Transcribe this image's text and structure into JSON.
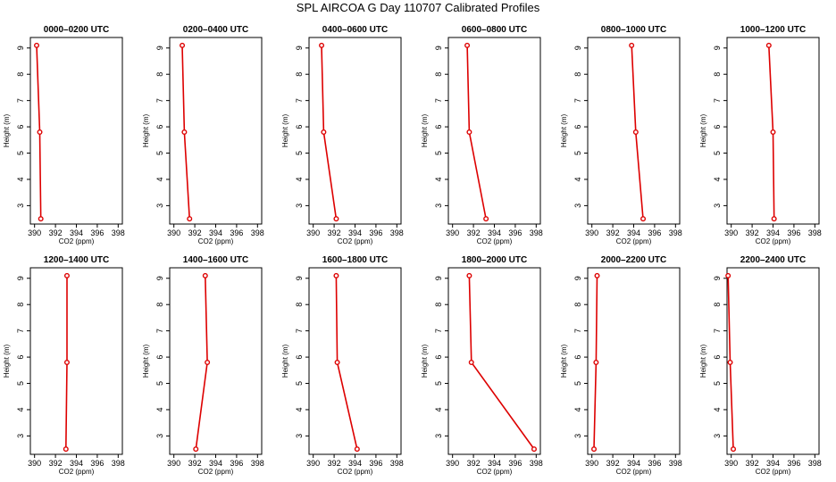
{
  "title": "SPL AIRCOA G  Day 110707  Calibrated Profiles",
  "colors": {
    "series": "#dd0000",
    "axis": "#000000",
    "background": "#ffffff"
  },
  "chart_data": [
    {
      "type": "line",
      "title": "0000–0200 UTC",
      "xlabel": "CO2 (ppm)",
      "ylabel": "Height (m)",
      "xlim": [
        389.6,
        398.4
      ],
      "ylim": [
        2.3,
        9.4
      ],
      "xticks": [
        390,
        392,
        394,
        396,
        398
      ],
      "yticks": [
        3,
        4,
        5,
        6,
        7,
        8,
        9
      ],
      "grid": false,
      "points": [
        {
          "x": 390.2,
          "y": 9.1
        },
        {
          "x": 390.5,
          "y": 5.8
        },
        {
          "x": 390.6,
          "y": 2.5
        }
      ]
    },
    {
      "type": "line",
      "title": "0200–0400 UTC",
      "xlabel": "CO2 (ppm)",
      "ylabel": "Height (m)",
      "xlim": [
        389.6,
        398.4
      ],
      "ylim": [
        2.3,
        9.4
      ],
      "xticks": [
        390,
        392,
        394,
        396,
        398
      ],
      "yticks": [
        3,
        4,
        5,
        6,
        7,
        8,
        9
      ],
      "grid": false,
      "points": [
        {
          "x": 390.8,
          "y": 9.1
        },
        {
          "x": 391.0,
          "y": 5.8
        },
        {
          "x": 391.5,
          "y": 2.5
        }
      ]
    },
    {
      "type": "line",
      "title": "0400–0600 UTC",
      "xlabel": "CO2 (ppm)",
      "ylabel": "Height (m)",
      "xlim": [
        389.6,
        398.4
      ],
      "ylim": [
        2.3,
        9.4
      ],
      "xticks": [
        390,
        392,
        394,
        396,
        398
      ],
      "yticks": [
        3,
        4,
        5,
        6,
        7,
        8,
        9
      ],
      "grid": false,
      "points": [
        {
          "x": 390.8,
          "y": 9.1
        },
        {
          "x": 391.0,
          "y": 5.8
        },
        {
          "x": 392.2,
          "y": 2.5
        }
      ]
    },
    {
      "type": "line",
      "title": "0600–0800 UTC",
      "xlabel": "CO2 (ppm)",
      "ylabel": "Height (m)",
      "xlim": [
        389.6,
        398.4
      ],
      "ylim": [
        2.3,
        9.4
      ],
      "xticks": [
        390,
        392,
        394,
        396,
        398
      ],
      "yticks": [
        3,
        4,
        5,
        6,
        7,
        8,
        9
      ],
      "grid": false,
      "points": [
        {
          "x": 391.4,
          "y": 9.1
        },
        {
          "x": 391.6,
          "y": 5.8
        },
        {
          "x": 393.2,
          "y": 2.5
        }
      ]
    },
    {
      "type": "line",
      "title": "0800–1000 UTC",
      "xlabel": "CO2 (ppm)",
      "ylabel": "Height (m)",
      "xlim": [
        389.6,
        398.4
      ],
      "ylim": [
        2.3,
        9.4
      ],
      "xticks": [
        390,
        392,
        394,
        396,
        398
      ],
      "yticks": [
        3,
        4,
        5,
        6,
        7,
        8,
        9
      ],
      "grid": false,
      "points": [
        {
          "x": 393.8,
          "y": 9.1
        },
        {
          "x": 394.2,
          "y": 5.8
        },
        {
          "x": 394.9,
          "y": 2.5
        }
      ]
    },
    {
      "type": "line",
      "title": "1000–1200 UTC",
      "xlabel": "CO2 (ppm)",
      "ylabel": "Height (m)",
      "xlim": [
        389.6,
        398.4
      ],
      "ylim": [
        2.3,
        9.4
      ],
      "xticks": [
        390,
        392,
        394,
        396,
        398
      ],
      "yticks": [
        3,
        4,
        5,
        6,
        7,
        8,
        9
      ],
      "grid": false,
      "points": [
        {
          "x": 393.6,
          "y": 9.1
        },
        {
          "x": 394.0,
          "y": 5.8
        },
        {
          "x": 394.1,
          "y": 2.5
        }
      ]
    },
    {
      "type": "line",
      "title": "1200–1400 UTC",
      "xlabel": "CO2 (ppm)",
      "ylabel": "Height (m)",
      "xlim": [
        389.6,
        398.4
      ],
      "ylim": [
        2.3,
        9.4
      ],
      "xticks": [
        390,
        392,
        394,
        396,
        398
      ],
      "yticks": [
        3,
        4,
        5,
        6,
        7,
        8,
        9
      ],
      "grid": false,
      "points": [
        {
          "x": 393.1,
          "y": 9.1
        },
        {
          "x": 393.1,
          "y": 5.8
        },
        {
          "x": 393.0,
          "y": 2.5
        }
      ]
    },
    {
      "type": "line",
      "title": "1400–1600 UTC",
      "xlabel": "CO2 (ppm)",
      "ylabel": "Height (m)",
      "xlim": [
        389.6,
        398.4
      ],
      "ylim": [
        2.3,
        9.4
      ],
      "xticks": [
        390,
        392,
        394,
        396,
        398
      ],
      "yticks": [
        3,
        4,
        5,
        6,
        7,
        8,
        9
      ],
      "grid": false,
      "points": [
        {
          "x": 393.0,
          "y": 9.1
        },
        {
          "x": 393.2,
          "y": 5.8
        },
        {
          "x": 392.1,
          "y": 2.5
        }
      ]
    },
    {
      "type": "line",
      "title": "1600–1800 UTC",
      "xlabel": "CO2 (ppm)",
      "ylabel": "Height (m)",
      "xlim": [
        389.6,
        398.4
      ],
      "ylim": [
        2.3,
        9.4
      ],
      "xticks": [
        390,
        392,
        394,
        396,
        398
      ],
      "yticks": [
        3,
        4,
        5,
        6,
        7,
        8,
        9
      ],
      "grid": false,
      "points": [
        {
          "x": 392.2,
          "y": 9.1
        },
        {
          "x": 392.3,
          "y": 5.8
        },
        {
          "x": 394.2,
          "y": 2.5
        }
      ]
    },
    {
      "type": "line",
      "title": "1800–2000 UTC",
      "xlabel": "CO2 (ppm)",
      "ylabel": "Height (m)",
      "xlim": [
        389.6,
        398.4
      ],
      "ylim": [
        2.3,
        9.4
      ],
      "xticks": [
        390,
        392,
        394,
        396,
        398
      ],
      "yticks": [
        3,
        4,
        5,
        6,
        7,
        8,
        9
      ],
      "grid": false,
      "points": [
        {
          "x": 391.6,
          "y": 9.1
        },
        {
          "x": 391.8,
          "y": 5.8
        },
        {
          "x": 397.8,
          "y": 2.5
        }
      ]
    },
    {
      "type": "line",
      "title": "2000–2200 UTC",
      "xlabel": "CO2 (ppm)",
      "ylabel": "Height (m)",
      "xlim": [
        389.6,
        398.4
      ],
      "ylim": [
        2.3,
        9.4
      ],
      "xticks": [
        390,
        392,
        394,
        396,
        398
      ],
      "yticks": [
        3,
        4,
        5,
        6,
        7,
        8,
        9
      ],
      "grid": false,
      "points": [
        {
          "x": 390.5,
          "y": 9.1
        },
        {
          "x": 390.4,
          "y": 5.8
        },
        {
          "x": 390.2,
          "y": 2.5
        }
      ]
    },
    {
      "type": "line",
      "title": "2200–2400 UTC",
      "xlabel": "CO2 (ppm)",
      "ylabel": "Height (m)",
      "xlim": [
        389.6,
        398.4
      ],
      "ylim": [
        2.3,
        9.4
      ],
      "xticks": [
        390,
        392,
        394,
        396,
        398
      ],
      "yticks": [
        3,
        4,
        5,
        6,
        7,
        8,
        9
      ],
      "grid": false,
      "points": [
        {
          "x": 389.7,
          "y": 9.1
        },
        {
          "x": 389.9,
          "y": 5.8
        },
        {
          "x": 390.2,
          "y": 2.5
        }
      ]
    }
  ]
}
